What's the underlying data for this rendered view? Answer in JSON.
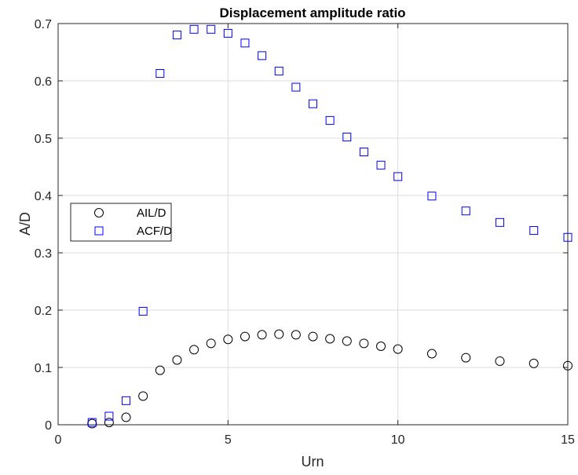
{
  "chart_data": {
    "type": "scatter",
    "title": "Displacement amplitude ratio",
    "xlabel": "Urn",
    "ylabel": "A/D",
    "xlim": [
      0,
      15
    ],
    "ylim": [
      0,
      0.7
    ],
    "xticks": [
      "0",
      "5",
      "10",
      "15"
    ],
    "yticks": [
      "0",
      "0.1",
      "0.2",
      "0.3",
      "0.4",
      "0.5",
      "0.6",
      "0.7"
    ],
    "grid": true,
    "legend_position": "middle-left",
    "series": [
      {
        "name": "AIL/D",
        "marker": "circle",
        "color": "#000000",
        "x": [
          1,
          1.5,
          2,
          2.5,
          3,
          3.5,
          4,
          4.5,
          5,
          5.5,
          6,
          6.5,
          7,
          7.5,
          8,
          8.5,
          9,
          9.5,
          10,
          11,
          12,
          13,
          14,
          15
        ],
        "y": [
          0.002,
          0.004,
          0.013,
          0.05,
          0.095,
          0.113,
          0.131,
          0.142,
          0.149,
          0.154,
          0.157,
          0.158,
          0.157,
          0.154,
          0.15,
          0.146,
          0.142,
          0.137,
          0.132,
          0.124,
          0.117,
          0.111,
          0.107,
          0.103
        ]
      },
      {
        "name": "ACF/D",
        "marker": "square",
        "color": "#0000ff",
        "x": [
          1,
          1.5,
          2,
          2.5,
          3,
          3.5,
          4,
          4.5,
          5,
          5.5,
          6,
          6.5,
          7,
          7.5,
          8,
          8.5,
          9,
          9.5,
          10,
          11,
          12,
          13,
          14,
          15
        ],
        "y": [
          0.004,
          0.015,
          0.042,
          0.198,
          0.613,
          0.68,
          0.69,
          0.69,
          0.683,
          0.666,
          0.644,
          0.617,
          0.589,
          0.56,
          0.531,
          0.502,
          0.476,
          0.453,
          0.433,
          0.399,
          0.373,
          0.353,
          0.339,
          0.327
        ]
      }
    ]
  }
}
